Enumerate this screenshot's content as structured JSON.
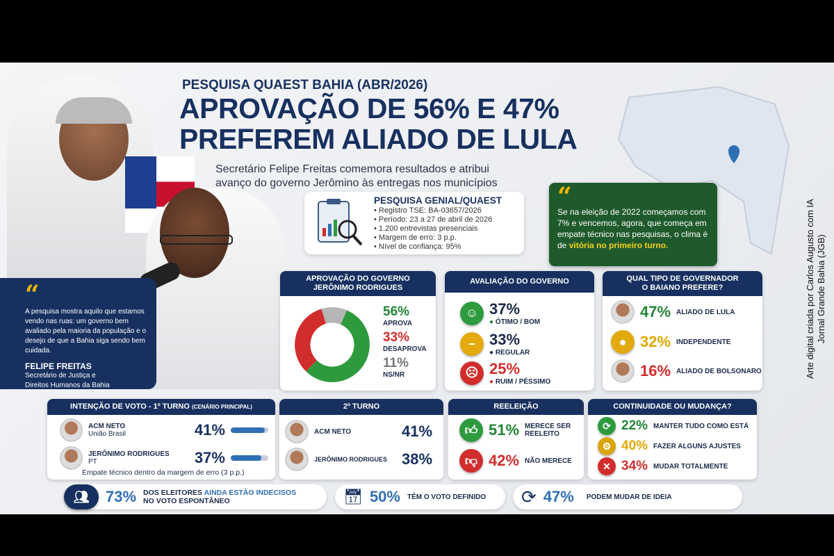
{
  "header": {
    "kicker": "PESQUISA QUAEST BAHIA (ABR/2026)",
    "title_line1": "APROVAÇÃO DE 56% E 47%",
    "title_line2": "PREFEREM ALIADO DE LULA",
    "subtitle_line1": "Secretário Felipe Freitas comemora resultados e atribui",
    "subtitle_line2": "avanço do governo Jerômino às entregas nos municípios"
  },
  "quote": {
    "text": "A pesquisa mostra aquilo que estamos vendo nas ruas: um governo bem avaliado pela maioria da população e o desejo de que a Bahia siga sendo bem cuidada.",
    "author": "FELIPE FREITAS",
    "role_line1": "Secretário de Justiça e",
    "role_line2": "Direitos Humanos da Bahia"
  },
  "survey": {
    "title": "PESQUISA GENIAL/QUAEST",
    "items": [
      "• Registro TSE: BA-03657/2026",
      "• Período: 23 a 27 de abril de 2026",
      "• 1.200 entrevistas presenciais",
      "• Margem de erro: 3 p.p.",
      "• Nível de confiança: 95%"
    ]
  },
  "green_quote": {
    "text": "Se na eleição de 2022 começamos com 7% e vencemos, agora, que começa em empate técnico nas pesquisas, o clima é de ",
    "highlight": "vitória no primeiro turno."
  },
  "approval": {
    "title_line1": "APROVAÇÃO DO GOVERNO",
    "title_line2": "JERÔNIMO RODRIGUES",
    "items": [
      {
        "pct": "56%",
        "label": "APROVA",
        "value": 56,
        "color": "#2e9a3e"
      },
      {
        "pct": "33%",
        "label": "DESAPROVA",
        "value": 33,
        "color": "#d12d2d"
      },
      {
        "pct": "11%",
        "label": "NS/NR",
        "value": 11,
        "color": "#b5b5b5"
      }
    ]
  },
  "evaluation": {
    "title": "AVALIAÇÃO DO GOVERNO",
    "items": [
      {
        "pct": "37%",
        "label": "ÓTIMO / BOM",
        "icon": "smile-face-icon",
        "color": "#2e9a3e",
        "glyph": "☺"
      },
      {
        "pct": "33%",
        "label": "REGULAR",
        "icon": "neutral-face-icon",
        "color": "#e3a90e",
        "glyph": "😐"
      },
      {
        "pct": "25%",
        "label": "RUIM / PÉSSIMO",
        "icon": "sad-face-icon",
        "color": "#d12d2d",
        "glyph": "☹"
      }
    ]
  },
  "governor_type": {
    "title_line1": "QUAL TIPO DE GOVERNADOR",
    "title_line2": "O BAIANO PREFERE?",
    "items": [
      {
        "pct": "47%",
        "label": "ALIADO DE LULA"
      },
      {
        "pct": "32%",
        "label": "INDEPENDENTE"
      },
      {
        "pct": "16%",
        "label": "ALIADO DE BOLSONARO"
      }
    ]
  },
  "first_round": {
    "title": "INTENÇÃO DE VOTO - 1º TURNO",
    "title_small": "(CENÁRIO PRINCIPAL)",
    "candidates": [
      {
        "name": "ACM NETO",
        "party": "União Brasil",
        "pct": "41%",
        "value": 41
      },
      {
        "name": "JERÔNIMO RODRIGUES",
        "party": "PT",
        "pct": "37%",
        "value": 37
      }
    ],
    "note": "Empate técnico dentro da margem de erro (3 p.p.)"
  },
  "second_round": {
    "title": "2º TURNO",
    "candidates": [
      {
        "name": "ACM NETO",
        "pct": "41%"
      },
      {
        "name": "JERÔNIMO RODRIGUES",
        "pct": "38%"
      }
    ]
  },
  "reelection": {
    "title": "REELEIÇÃO",
    "items": [
      {
        "pct": "51%",
        "label_line1": "MERECE SER",
        "label_line2": "REELEITO"
      },
      {
        "pct": "42%",
        "label_line1": "NÃO MERECE",
        "label_line2": ""
      }
    ]
  },
  "continuity": {
    "title": "CONTINUIDADE OU MUDANÇA?",
    "items": [
      {
        "pct": "22%",
        "label": "MANTER TUDO COMO ESTÁ"
      },
      {
        "pct": "40%",
        "label": "FAZER ALGUNS AJUSTES"
      },
      {
        "pct": "34%",
        "label": "MUDAR TOTALMENTE"
      }
    ]
  },
  "footer": {
    "stat1": {
      "pct": "73%",
      "text1": "DOS ELEITORES ",
      "text_bold": "AINDA ESTÃO INDECISOS",
      "text2": "NO VOTO ESPONTÂNEO"
    },
    "stat2": {
      "pct": "50%",
      "text": "TÊM O VOTO DEFINIDO"
    },
    "stat3": {
      "pct": "47%",
      "text": "PODEM MUDAR DE IDEIA"
    }
  },
  "credit": {
    "line1": "Arte digital criada por Carlos Augusto com IA",
    "line2": "Jornal Grande Bahia (JGB)"
  }
}
